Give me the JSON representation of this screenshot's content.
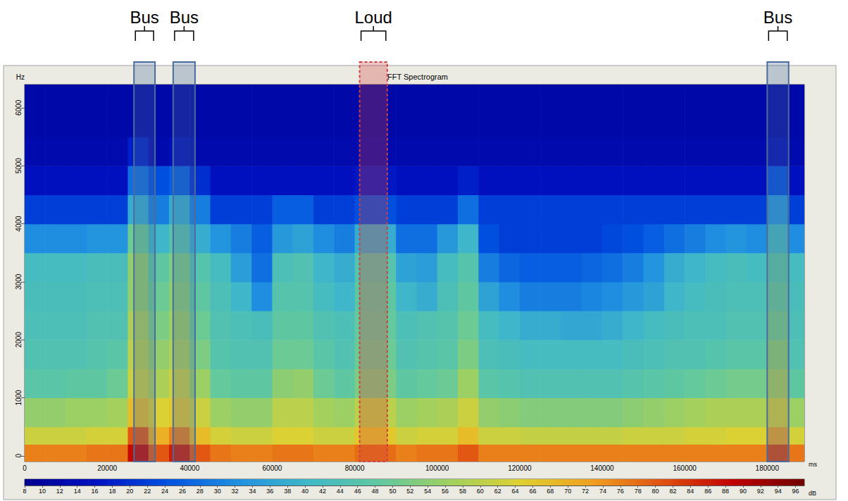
{
  "chart_data": {
    "type": "heatmap",
    "title": "FFT Spectrogram",
    "x_label": "ms",
    "y_label": "Hz",
    "xlim": [
      0,
      189000
    ],
    "xticks": [
      0,
      20000,
      40000,
      60000,
      80000,
      100000,
      120000,
      140000,
      160000,
      180000
    ],
    "ylim": [
      -100,
      6400
    ],
    "yticks": [
      0,
      1000,
      2000,
      3000,
      4000,
      5000,
      6000
    ],
    "time_edges": [
      0,
      5000,
      10000,
      15000,
      20000,
      25000,
      30000,
      35000,
      40000,
      45000,
      50000,
      55000,
      60000,
      65000,
      70000,
      75000,
      80000,
      85000,
      90000,
      95000,
      100000,
      105000,
      110000,
      115000,
      120000,
      125000,
      130000,
      135000,
      140000,
      145000,
      150000,
      155000,
      160000,
      165000,
      170000,
      175000,
      180000,
      185000,
      189000
    ],
    "freq_edges": [
      -100,
      200,
      500,
      1000,
      1500,
      2000,
      2500,
      3000,
      3500,
      4000,
      4500,
      5000,
      5500,
      6400
    ],
    "cells": [
      [
        76,
        76,
        76,
        77,
        77,
        88,
        80,
        86,
        80,
        77,
        76,
        76,
        77,
        77,
        76,
        76,
        78,
        78,
        76,
        77,
        77,
        80,
        76,
        76,
        76,
        76,
        76,
        76,
        76,
        76,
        76,
        76,
        76,
        76,
        76,
        76,
        82,
        77
      ],
      [
        62,
        62,
        62,
        63,
        63,
        80,
        70,
        76,
        68,
        63,
        62,
        62,
        64,
        64,
        62,
        62,
        66,
        66,
        62,
        63,
        63,
        68,
        62,
        62,
        61,
        61,
        61,
        61,
        61,
        62,
        62,
        62,
        63,
        63,
        64,
        64,
        72,
        63
      ],
      [
        55,
        55,
        56,
        56,
        57,
        68,
        64,
        66,
        62,
        56,
        55,
        55,
        60,
        60,
        57,
        56,
        60,
        60,
        56,
        57,
        58,
        62,
        55,
        54,
        53,
        53,
        53,
        53,
        53,
        54,
        55,
        56,
        57,
        58,
        58,
        58,
        64,
        56
      ],
      [
        47,
        47,
        48,
        48,
        50,
        62,
        58,
        62,
        56,
        49,
        48,
        48,
        54,
        55,
        50,
        48,
        52,
        52,
        48,
        49,
        50,
        56,
        47,
        46,
        45,
        45,
        45,
        45,
        45,
        46,
        47,
        48,
        49,
        50,
        51,
        51,
        58,
        48
      ],
      [
        45,
        45,
        45,
        46,
        47,
        60,
        55,
        58,
        52,
        46,
        45,
        45,
        50,
        50,
        47,
        45,
        50,
        50,
        45,
        46,
        47,
        52,
        44,
        43,
        42,
        42,
        42,
        42,
        42,
        43,
        44,
        45,
        45,
        46,
        47,
        47,
        55,
        45
      ],
      [
        44,
        44,
        44,
        45,
        45,
        58,
        52,
        56,
        50,
        45,
        44,
        43,
        48,
        48,
        45,
        44,
        49,
        49,
        44,
        45,
        46,
        50,
        42,
        40,
        38,
        38,
        37,
        37,
        38,
        40,
        42,
        43,
        44,
        44,
        45,
        45,
        52,
        44
      ],
      [
        43,
        43,
        43,
        44,
        44,
        55,
        50,
        54,
        48,
        44,
        40,
        32,
        46,
        46,
        42,
        40,
        48,
        48,
        40,
        38,
        44,
        48,
        36,
        32,
        30,
        30,
        30,
        31,
        32,
        34,
        36,
        40,
        42,
        43,
        44,
        44,
        50,
        43
      ],
      [
        42,
        42,
        42,
        43,
        43,
        55,
        48,
        52,
        46,
        42,
        35,
        28,
        44,
        45,
        40,
        38,
        46,
        46,
        36,
        35,
        42,
        46,
        30,
        27,
        26,
        26,
        26,
        27,
        28,
        30,
        33,
        38,
        40,
        42,
        43,
        42,
        48,
        42
      ],
      [
        32,
        32,
        32,
        33,
        33,
        50,
        40,
        46,
        38,
        33,
        30,
        26,
        34,
        36,
        32,
        30,
        38,
        38,
        28,
        28,
        34,
        40,
        24,
        22,
        22,
        22,
        22,
        22,
        23,
        24,
        26,
        28,
        30,
        32,
        33,
        32,
        42,
        32
      ],
      [
        22,
        22,
        22,
        22,
        22,
        38,
        30,
        38,
        30,
        22,
        22,
        22,
        26,
        26,
        22,
        22,
        24,
        24,
        22,
        22,
        22,
        28,
        22,
        22,
        22,
        22,
        22,
        22,
        22,
        22,
        22,
        22,
        22,
        22,
        22,
        22,
        34,
        22
      ],
      [
        16,
        16,
        16,
        16,
        16,
        28,
        24,
        26,
        20,
        16,
        16,
        16,
        16,
        16,
        16,
        16,
        17,
        17,
        16,
        16,
        16,
        18,
        16,
        16,
        16,
        16,
        16,
        16,
        16,
        16,
        16,
        16,
        16,
        16,
        16,
        16,
        24,
        16
      ],
      [
        13,
        13,
        13,
        13,
        13,
        18,
        13,
        15,
        13,
        13,
        13,
        13,
        13,
        13,
        13,
        13,
        13,
        13,
        13,
        13,
        13,
        13,
        13,
        13,
        13,
        13,
        13,
        13,
        13,
        13,
        13,
        13,
        13,
        13,
        13,
        13,
        14,
        13
      ],
      [
        12,
        12,
        12,
        12,
        12,
        12,
        12,
        12,
        12,
        12,
        12,
        12,
        12,
        12,
        12,
        12,
        12,
        12,
        12,
        12,
        12,
        12,
        12,
        12,
        12,
        12,
        12,
        12,
        12,
        12,
        12,
        12,
        12,
        12,
        12,
        12,
        12,
        12
      ]
    ],
    "colorbar_label": "dB",
    "colorbar_range": [
      8,
      97
    ],
    "colorbar_ticks": [
      8,
      10,
      12,
      14,
      16,
      18,
      20,
      22,
      24,
      26,
      28,
      30,
      32,
      34,
      36,
      38,
      40,
      42,
      44,
      46,
      48,
      50,
      52,
      54,
      56,
      58,
      60,
      62,
      64,
      66,
      68,
      70,
      72,
      74,
      76,
      78,
      80,
      82,
      84,
      86,
      88,
      90,
      92,
      94,
      96
    ],
    "regions": [
      {
        "label": "Bus",
        "start": 26500,
        "end": 31600,
        "color": "#4a6d9c",
        "line_style": "solid"
      },
      {
        "label": "Bus",
        "start": 36000,
        "end": 41300,
        "color": "#4a6d9c",
        "line_style": "solid"
      },
      {
        "label": "Loud",
        "start": 81200,
        "end": 87900,
        "color": "#d04040",
        "line_style": "dashed"
      },
      {
        "label": "Bus",
        "start": 180000,
        "end": 185200,
        "color": "#4a6d9c",
        "line_style": "solid"
      }
    ]
  }
}
